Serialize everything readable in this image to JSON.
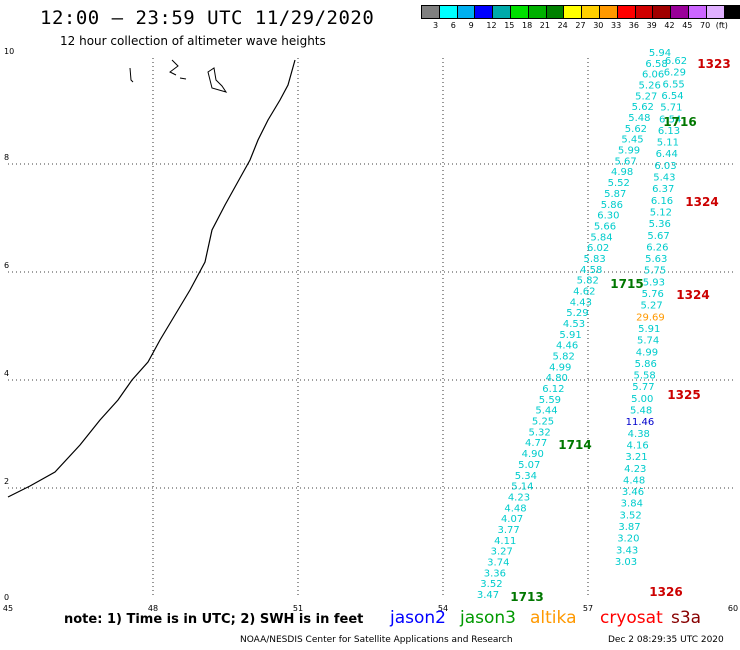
{
  "header": {
    "title": "12:00 — 23:59 UTC 11/29/2020",
    "subtitle": "12 hour collection of altimeter wave heights"
  },
  "scale": {
    "colors": [
      "#808080",
      "#00ffff",
      "#00b0f0",
      "#0000ff",
      "#00aaaa",
      "#00e000",
      "#00b000",
      "#008000",
      "#ffff00",
      "#ffd000",
      "#ff9900",
      "#ff0000",
      "#d00000",
      "#a00000",
      "#990099",
      "#cc66ff",
      "#e0b0ff",
      "#000000"
    ],
    "labels": [
      "3",
      "6",
      "9",
      "12",
      "15",
      "18",
      "21",
      "24",
      "27",
      "30",
      "33",
      "36",
      "39",
      "42",
      "45",
      "70",
      "(ft)"
    ]
  },
  "map": {
    "x_ticks": [
      "45",
      "48",
      "51",
      "54",
      "57",
      "60"
    ],
    "y_ticks": [
      "0",
      "2",
      "4",
      "6",
      "8",
      "10"
    ],
    "passes": [
      {
        "label": "1323",
        "color": "#cc0000"
      },
      {
        "label": "1716",
        "color": "#007700"
      },
      {
        "label": "1324",
        "color": "#cc0000"
      },
      {
        "label": "1715",
        "color": "#007700"
      },
      {
        "label": "1324",
        "color": "#cc0000"
      },
      {
        "label": "1325",
        "color": "#cc0000"
      },
      {
        "label": "1714",
        "color": "#007700"
      },
      {
        "label": "1713",
        "color": "#007700"
      },
      {
        "label": "1326",
        "color": "#cc0000"
      }
    ],
    "track_a": [
      "5.94",
      "6.58",
      "6.06",
      "5.26",
      "5.27",
      "5.62",
      "5.48",
      "5.62",
      "5.45",
      "5.99",
      "5.67",
      "4.98",
      "5.52",
      "5.87",
      "5.86",
      "6.30",
      "5.66",
      "5.84",
      "6.02",
      "5.83",
      "4.58",
      "5.82",
      "4.62",
      "4.43",
      "5.29",
      "4.53",
      "5.91",
      "4.46",
      "5.82",
      "4.99",
      "4.80",
      "6.12",
      "5.59",
      "5.44",
      "5.25",
      "5.32",
      "4.77",
      "4.90",
      "5.07",
      "5.34",
      "5.14",
      "4.23",
      "4.48",
      "4.07",
      "3.77",
      "4.11",
      "3.27",
      "3.74",
      "3.36",
      "3.52",
      "3.47"
    ],
    "track_b": [
      "6.62",
      "6.29",
      "6.55",
      "6.54",
      "5.71",
      "6.54",
      "6.13",
      "5.11",
      "6.44",
      "6.03",
      "5.43",
      "6.37",
      "6.16",
      "5.12",
      "5.36",
      "5.67",
      "6.26",
      "5.63",
      "5.75",
      "5.93",
      "5.76",
      "5.27",
      "29.69",
      "5.91",
      "5.74",
      "4.99",
      "5.86",
      "5.58",
      "5.77",
      "5.00",
      "5.48",
      "11.46",
      "4.38",
      "4.16",
      "3.21",
      "4.23",
      "4.48",
      "3.46",
      "3.84",
      "3.52",
      "3.87",
      "3.20",
      "3.43",
      "3.03"
    ],
    "track_b_colors": {
      "29.69": "#ff9900",
      "11.46": "#0000cc"
    }
  },
  "footer": {
    "note": "note: 1) Time is in UTC; 2) SWH is in feet",
    "satellites": [
      {
        "name": "jason2",
        "color": "#0000ff"
      },
      {
        "name": "jason3",
        "color": "#009900"
      },
      {
        "name": "altika",
        "color": "#ff9900"
      },
      {
        "name": "cryosat",
        "color": "#ff0000"
      },
      {
        "name": "s3a",
        "color": "#880000"
      }
    ],
    "credit": "NOAA/NESDIS Center for Satellite Applications and Research",
    "timestamp": "Dec  2 08:29:35 UTC 2020"
  }
}
